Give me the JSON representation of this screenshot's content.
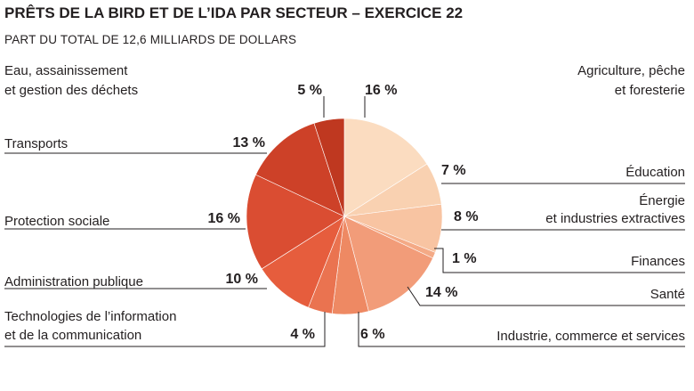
{
  "chart_data": {
    "type": "pie",
    "title": "PRÊTS DE LA BIRD ET DE L’IDA PAR SECTEUR – EXERCICE 22",
    "subtitle": "PART DU TOTAL DE 12,6 MILLIARDS DE DOLLARS",
    "unit": "%",
    "slices": [
      {
        "label": [
          "Agriculture, pêche",
          "et foresterie"
        ],
        "value": 16,
        "value_label": "16 %",
        "color": "#fbdcc0"
      },
      {
        "label": [
          "Éducation"
        ],
        "value": 7,
        "value_label": "7 %",
        "color": "#f9d1b1"
      },
      {
        "label": [
          "Énergie",
          "et industries extractives"
        ],
        "value": 8,
        "value_label": "8 %",
        "color": "#f8c4a2"
      },
      {
        "label": [
          "Finances"
        ],
        "value": 1,
        "value_label": "1 %",
        "color": "#f4aa86"
      },
      {
        "label": [
          "Santé"
        ],
        "value": 14,
        "value_label": "14 %",
        "color": "#f29c79"
      },
      {
        "label": [
          "Industrie, commerce et services"
        ],
        "value": 6,
        "value_label": "6 %",
        "color": "#ee8963"
      },
      {
        "label": [
          "Technologies de l’information",
          "et de la communication"
        ],
        "value": 4,
        "value_label": "4 %",
        "color": "#ea7350"
      },
      {
        "label": [
          "Administration publique"
        ],
        "value": 10,
        "value_label": "10 %",
        "color": "#e65d3d"
      },
      {
        "label": [
          "Protection sociale"
        ],
        "value": 16,
        "value_label": "16 %",
        "color": "#da4d32"
      },
      {
        "label": [
          "Transports"
        ],
        "value": 13,
        "value_label": "13 %",
        "color": "#cd4128"
      },
      {
        "label": [
          "Eau, assainissement",
          "et gestion des déchets"
        ],
        "value": 5,
        "value_label": "5 %",
        "color": "#bf3820"
      }
    ]
  }
}
